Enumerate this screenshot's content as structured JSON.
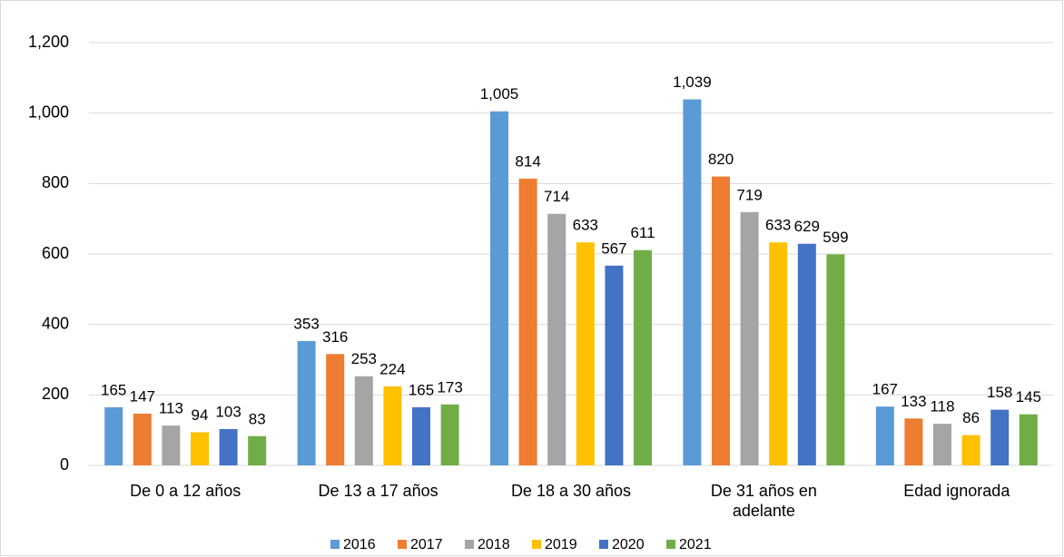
{
  "chart_data": {
    "type": "bar",
    "categories": [
      "De 0 a 12 años",
      "De 13 a 17 años",
      "De 18 a 30 años",
      "De 31 años en adelante",
      "Edad ignorada"
    ],
    "series": [
      {
        "name": "2016",
        "color": "#5b9bd5",
        "values": [
          165,
          353,
          1005,
          1039,
          167
        ],
        "value_labels": [
          "165",
          "353",
          "1,005",
          "1,039",
          "167"
        ]
      },
      {
        "name": "2017",
        "color": "#ed7d31",
        "values": [
          147,
          316,
          814,
          820,
          133
        ]
      },
      {
        "name": "2018",
        "color": "#a5a5a5",
        "values": [
          113,
          253,
          714,
          719,
          118
        ]
      },
      {
        "name": "2019",
        "color": "#ffc000",
        "values": [
          94,
          224,
          633,
          633,
          86
        ]
      },
      {
        "name": "2020",
        "color": "#4472c4",
        "values": [
          103,
          165,
          567,
          629,
          158
        ]
      },
      {
        "name": "2021",
        "color": "#70ad47",
        "values": [
          83,
          173,
          611,
          599,
          145
        ]
      }
    ],
    "ylim": [
      0,
      1200
    ],
    "yticks": [
      0,
      200,
      400,
      600,
      800,
      {
        "value": 1000,
        "label": "1,000"
      },
      {
        "value": 1200,
        "label": "1,200"
      }
    ],
    "grid": true,
    "legend": "bottom"
  }
}
